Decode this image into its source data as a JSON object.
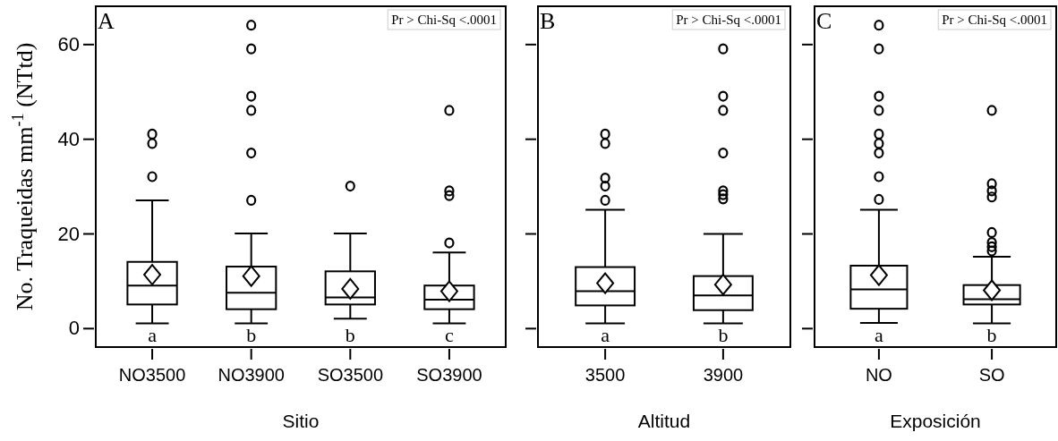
{
  "chart_data": [
    {
      "type": "box",
      "xlabel": "Sitio",
      "ylabel": "No. Traqueidas mm$^{-1}$ (NTtd)",
      "categories": [
        "NO3500",
        "NO3900",
        "SO3500",
        "SO3900"
      ],
      "ylim": [
        -4,
        68
      ],
      "yticks": [
        0,
        20,
        40,
        60
      ],
      "marker": "diamond",
      "boxes": [
        {
          "low": 1,
          "q1": 5,
          "median": 9,
          "q3": 14,
          "high": 27,
          "mean": 11.3,
          "outliers": [
            32,
            39,
            41
          ]
        },
        {
          "low": 1,
          "q1": 4,
          "median": 7.5,
          "q3": 13,
          "high": 20,
          "mean": 11,
          "outliers": [
            27,
            37,
            46,
            49,
            59,
            64
          ]
        },
        {
          "low": 2,
          "q1": 5,
          "median": 6.5,
          "q3": 12,
          "high": 20,
          "mean": 8.3,
          "outliers": [
            30
          ]
        },
        {
          "low": 1,
          "q1": 4,
          "median": 6,
          "q3": 9,
          "high": 16,
          "mean": 7.8,
          "outliers": [
            18,
            28,
            29,
            46
          ]
        }
      ],
      "annotations": [
        "A",
        "Pr > Chi-Sq <.0001",
        "a",
        "b",
        "b",
        "c"
      ]
    },
    {
      "type": "box",
      "xlabel": "Altitud",
      "categories": [
        "3500",
        "3900"
      ],
      "ylim": [
        -4,
        68
      ],
      "yticks": [
        {
          "value": 0,
          "label": null
        },
        {
          "value": 20,
          "label": null
        },
        {
          "value": 40,
          "label": null
        },
        {
          "value": 60,
          "label": null
        }
      ],
      "tick_labels": "x",
      "marker": "diamond",
      "boxes": [
        {
          "low": 1,
          "q1": 4.8,
          "median": 7.8,
          "q3": 12.9,
          "high": 25,
          "mean": 9.5,
          "outliers": [
            27,
            30,
            31.7,
            39,
            41
          ]
        },
        {
          "low": 1,
          "q1": 3.8,
          "median": 6.9,
          "q3": 11,
          "high": 19.9,
          "mean": 9.2,
          "outliers": [
            27.3,
            28.2,
            29,
            37,
            46,
            49,
            59
          ]
        }
      ],
      "annotations": [
        "B",
        "Pr > Chi-Sq <.0001",
        "a",
        "b"
      ]
    },
    {
      "type": "box",
      "xlabel": "Exposición",
      "categories": [
        "NO",
        "SO"
      ],
      "ylim": [
        -4,
        68
      ],
      "yticks": [
        {
          "value": 0,
          "label": null
        },
        {
          "value": 20,
          "label": null
        },
        {
          "value": 40,
          "label": null
        },
        {
          "value": 60,
          "label": null
        }
      ],
      "tick_labels": "x",
      "marker": "diamond",
      "boxes": [
        {
          "low": 1.1,
          "q1": 4.1,
          "median": 8.2,
          "q3": 13.2,
          "high": 25,
          "mean": 11.2,
          "outliers": [
            27.2,
            32,
            37,
            39,
            41,
            46,
            49,
            59,
            64
          ]
        },
        {
          "low": 1,
          "q1": 5,
          "median": 6.1,
          "q3": 9.1,
          "high": 15.1,
          "mean": 8,
          "outliers": [
            16.3,
            17.2,
            18.1,
            20.2,
            27.7,
            29,
            30.5,
            46
          ]
        }
      ],
      "annotations": [
        "C",
        "Pr > Chi-Sq <.0001",
        "a",
        "b"
      ]
    }
  ]
}
